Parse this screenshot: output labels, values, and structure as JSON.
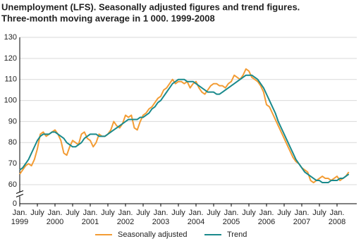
{
  "chart_data": {
    "type": "line",
    "title": "Unemployment (LFS). Seasonally adjusted figures and trend figures.",
    "subtitle": "Three-month moving average in 1 000. 1999-2008",
    "x": [
      "1999-01",
      "1999-02",
      "1999-03",
      "1999-04",
      "1999-05",
      "1999-06",
      "1999-07",
      "1999-08",
      "1999-09",
      "1999-10",
      "1999-11",
      "1999-12",
      "2000-01",
      "2000-02",
      "2000-03",
      "2000-04",
      "2000-05",
      "2000-06",
      "2000-07",
      "2000-08",
      "2000-09",
      "2000-10",
      "2000-11",
      "2000-12",
      "2001-01",
      "2001-02",
      "2001-03",
      "2001-04",
      "2001-05",
      "2001-06",
      "2001-07",
      "2001-08",
      "2001-09",
      "2001-10",
      "2001-11",
      "2001-12",
      "2002-01",
      "2002-02",
      "2002-03",
      "2002-04",
      "2002-05",
      "2002-06",
      "2002-07",
      "2002-08",
      "2002-09",
      "2002-10",
      "2002-11",
      "2002-12",
      "2003-01",
      "2003-02",
      "2003-03",
      "2003-04",
      "2003-05",
      "2003-06",
      "2003-07",
      "2003-08",
      "2003-09",
      "2003-10",
      "2003-11",
      "2003-12",
      "2004-01",
      "2004-02",
      "2004-03",
      "2004-04",
      "2004-05",
      "2004-06",
      "2004-07",
      "2004-08",
      "2004-09",
      "2004-10",
      "2004-11",
      "2004-12",
      "2005-01",
      "2005-02",
      "2005-03",
      "2005-04",
      "2005-05",
      "2005-06",
      "2005-07",
      "2005-08",
      "2005-09",
      "2005-10",
      "2005-11",
      "2005-12",
      "2006-01",
      "2006-02",
      "2006-03",
      "2006-04",
      "2006-05",
      "2006-06",
      "2006-07",
      "2006-08",
      "2006-09",
      "2006-10",
      "2006-11",
      "2006-12",
      "2007-01",
      "2007-02",
      "2007-03",
      "2007-04",
      "2007-05",
      "2007-06",
      "2007-07",
      "2007-08",
      "2007-09",
      "2007-10",
      "2007-11",
      "2007-12",
      "2008-01",
      "2008-02",
      "2008-03",
      "2008-04",
      "2008-05"
    ],
    "series": [
      {
        "name": "Seasonally adjusted",
        "color": "#f39c34",
        "values": [
          65,
          67,
          69,
          70,
          69,
          72,
          77,
          84,
          85,
          83,
          84,
          85,
          86,
          84,
          81,
          75,
          74,
          78,
          81,
          80,
          79,
          84,
          85,
          82,
          81,
          78,
          80,
          84,
          83,
          83,
          84,
          86,
          90,
          88,
          87,
          89,
          93,
          92,
          93,
          87,
          86,
          90,
          93,
          94,
          96,
          97,
          99,
          101,
          102,
          105,
          106,
          108,
          110,
          108,
          109,
          109,
          108,
          109,
          106,
          108,
          109,
          106,
          104,
          103,
          105,
          107,
          108,
          108,
          107,
          107,
          106,
          108,
          109,
          112,
          111,
          110,
          112,
          115,
          114,
          111,
          110,
          109,
          107,
          104,
          98,
          97,
          94,
          91,
          88,
          85,
          82,
          79,
          76,
          73,
          71,
          70,
          68,
          67,
          66,
          62,
          61,
          62,
          63,
          64,
          63,
          63,
          62,
          63,
          64,
          62,
          63,
          64,
          66
        ]
      },
      {
        "name": "Trend",
        "color": "#1a8a8c",
        "values": [
          67,
          68,
          70,
          72,
          75,
          78,
          81,
          83,
          84,
          84,
          84,
          85,
          85,
          84,
          83,
          82,
          80,
          79,
          78,
          78,
          79,
          80,
          82,
          83,
          84,
          84,
          84,
          83,
          83,
          83,
          84,
          85,
          86,
          87,
          88,
          89,
          90,
          91,
          91,
          91,
          91,
          92,
          92,
          93,
          94,
          96,
          97,
          99,
          100,
          102,
          104,
          106,
          108,
          109,
          110,
          110,
          110,
          109,
          109,
          109,
          108,
          107,
          106,
          105,
          104,
          104,
          104,
          103,
          103,
          104,
          105,
          106,
          107,
          108,
          109,
          110,
          111,
          112,
          112,
          112,
          111,
          110,
          108,
          106,
          103,
          100,
          97,
          94,
          90,
          87,
          84,
          81,
          78,
          75,
          72,
          70,
          68,
          66,
          65,
          64,
          63,
          62,
          62,
          61,
          61,
          61,
          62,
          62,
          62,
          63,
          63,
          64,
          65
        ]
      }
    ],
    "ylim": [
      0,
      130
    ],
    "y_break": [
      0,
      60
    ],
    "yticks": [
      0,
      60,
      70,
      80,
      90,
      100,
      110,
      120,
      130
    ],
    "grid": true,
    "xticks": [
      {
        "value": "1999-01",
        "label": "Jan."
      },
      {
        "value": "1999-07",
        "label": "July"
      },
      {
        "value": "2000-01",
        "label": "Jan."
      },
      {
        "value": "2000-07",
        "label": "July"
      },
      {
        "value": "2001-01",
        "label": "Jan."
      },
      {
        "value": "2001-07",
        "label": "July"
      },
      {
        "value": "2002-01",
        "label": "Jan."
      },
      {
        "value": "2002-07",
        "label": "July"
      },
      {
        "value": "2003-01",
        "label": "Jan."
      },
      {
        "value": "2003-07",
        "label": "July"
      },
      {
        "value": "2004-01",
        "label": "Jan."
      },
      {
        "value": "2004-07",
        "label": "July"
      },
      {
        "value": "2005-01",
        "label": "Jan."
      },
      {
        "value": "2005-07",
        "label": "July"
      },
      {
        "value": "2006-01",
        "label": "Jan."
      },
      {
        "value": "2006-07",
        "label": "July"
      },
      {
        "value": "2007-01",
        "label": "Jan."
      },
      {
        "value": "2007-07",
        "label": "July"
      },
      {
        "value": "2008-01",
        "label": "Jan."
      }
    ],
    "xtick_years": [
      {
        "value": "1999-01",
        "label": "1999"
      },
      {
        "value": "2000-01",
        "label": "2000"
      },
      {
        "value": "2001-01",
        "label": "2001"
      },
      {
        "value": "2002-01",
        "label": "2002"
      },
      {
        "value": "2003-01",
        "label": "2003"
      },
      {
        "value": "2004-01",
        "label": "2004"
      },
      {
        "value": "2005-01",
        "label": "2005"
      },
      {
        "value": "2006-01",
        "label": "2006"
      },
      {
        "value": "2007-01",
        "label": "2007"
      },
      {
        "value": "2008-01",
        "label": "2008"
      }
    ],
    "legend": "bottom"
  }
}
